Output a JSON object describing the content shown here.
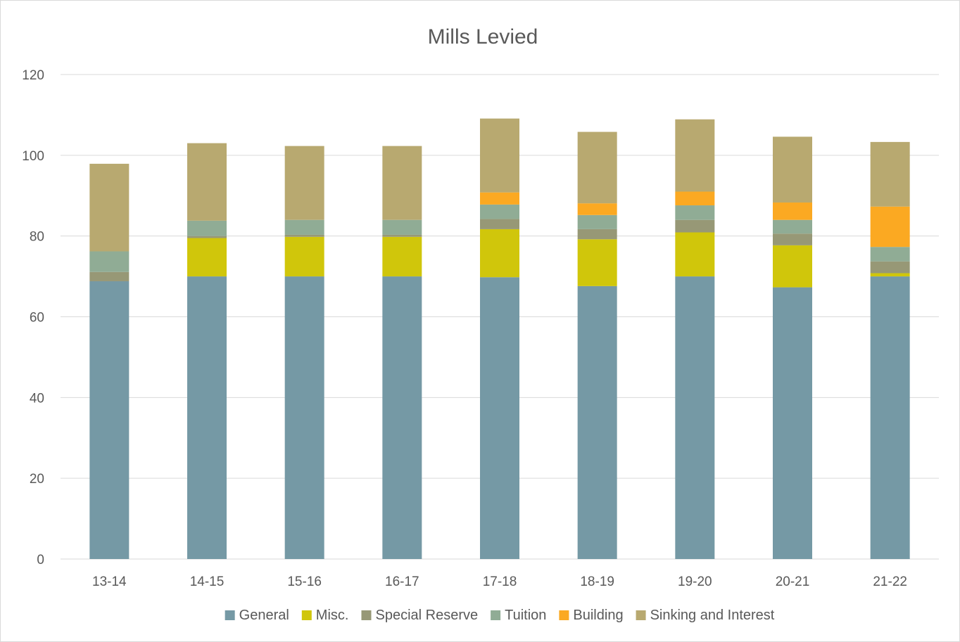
{
  "chart_data": {
    "type": "bar",
    "stacked": true,
    "title": "Mills Levied",
    "xlabel": "",
    "ylabel": "",
    "ylim": [
      0,
      120
    ],
    "yticks": [
      0,
      20,
      40,
      60,
      80,
      100,
      120
    ],
    "grid": true,
    "legend_position": "bottom",
    "categories": [
      "13-14",
      "14-15",
      "15-16",
      "16-17",
      "17-18",
      "18-19",
      "19-20",
      "20-21",
      "21-22"
    ],
    "series": [
      {
        "name": "General",
        "color": "#7599a5",
        "values": [
          68.8,
          70.0,
          70.0,
          70.0,
          69.8,
          67.6,
          70.0,
          67.3,
          70.0
        ]
      },
      {
        "name": "Misc.",
        "color": "#d0c60b",
        "values": [
          0.0,
          9.5,
          9.8,
          9.8,
          11.9,
          11.6,
          10.9,
          10.4,
          0.8
        ]
      },
      {
        "name": "Special Reserve",
        "color": "#979876",
        "values": [
          2.3,
          0.5,
          0.5,
          0.5,
          2.5,
          2.5,
          3.1,
          2.9,
          2.9
        ]
      },
      {
        "name": "Tuition",
        "color": "#90ac95",
        "values": [
          5.1,
          3.8,
          3.7,
          3.7,
          3.6,
          3.5,
          3.6,
          3.4,
          3.6
        ]
      },
      {
        "name": "Building",
        "color": "#fba922",
        "values": [
          0.0,
          0.0,
          0.0,
          0.0,
          3.0,
          2.9,
          3.4,
          4.3,
          10.0
        ]
      },
      {
        "name": "Sinking and Interest",
        "color": "#b8a970",
        "values": [
          21.7,
          19.2,
          18.3,
          18.3,
          18.3,
          17.7,
          17.9,
          16.3,
          16.0
        ]
      }
    ]
  }
}
